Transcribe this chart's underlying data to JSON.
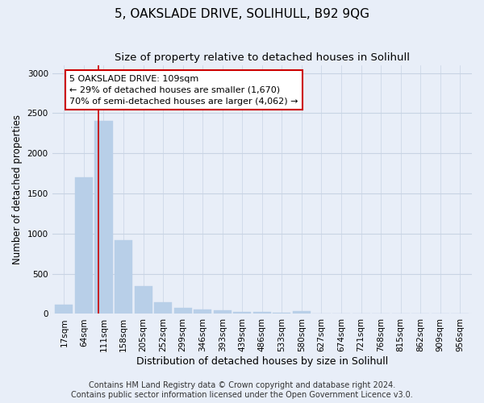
{
  "title": "5, OAKSLADE DRIVE, SOLIHULL, B92 9QG",
  "subtitle": "Size of property relative to detached houses in Solihull",
  "xlabel": "Distribution of detached houses by size in Solihull",
  "ylabel": "Number of detached properties",
  "categories": [
    "17sqm",
    "64sqm",
    "111sqm",
    "158sqm",
    "205sqm",
    "252sqm",
    "299sqm",
    "346sqm",
    "393sqm",
    "439sqm",
    "486sqm",
    "533sqm",
    "580sqm",
    "627sqm",
    "674sqm",
    "721sqm",
    "768sqm",
    "815sqm",
    "862sqm",
    "909sqm",
    "956sqm"
  ],
  "values": [
    120,
    1700,
    2400,
    920,
    345,
    145,
    75,
    50,
    40,
    25,
    22,
    10,
    30,
    0,
    0,
    0,
    0,
    0,
    0,
    0,
    0
  ],
  "bar_color": "#b8cfe8",
  "bar_edge_color": "#b8cfe8",
  "grid_color": "#c8d4e4",
  "bg_color": "#e8eef8",
  "vline_x": 1.75,
  "vline_color": "#cc0000",
  "annotation_line1": "5 OAKSLADE DRIVE: 109sqm",
  "annotation_line2": "← 29% of detached houses are smaller (1,670)",
  "annotation_line3": "70% of semi-detached houses are larger (4,062) →",
  "annotation_box_color": "#ffffff",
  "annotation_box_edge": "#cc0000",
  "ylim": [
    0,
    3100
  ],
  "yticks": [
    0,
    500,
    1000,
    1500,
    2000,
    2500,
    3000
  ],
  "footer": "Contains HM Land Registry data © Crown copyright and database right 2024.\nContains public sector information licensed under the Open Government Licence v3.0.",
  "title_fontsize": 11,
  "subtitle_fontsize": 9.5,
  "xlabel_fontsize": 9,
  "ylabel_fontsize": 8.5,
  "tick_fontsize": 7.5,
  "annotation_fontsize": 8,
  "footer_fontsize": 7
}
